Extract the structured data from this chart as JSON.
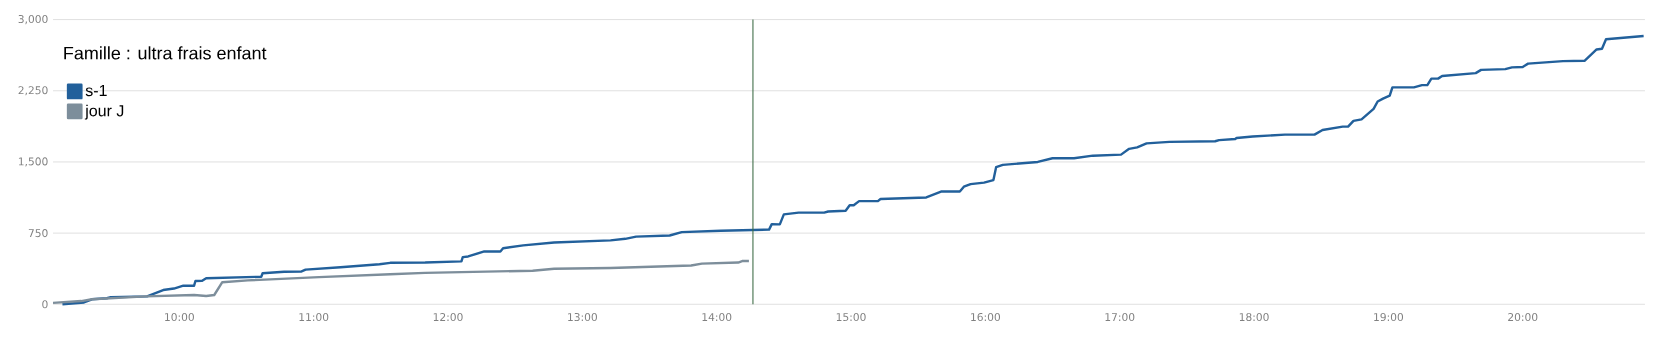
{
  "chart_data": {
    "type": "line",
    "title": "Famille : ultra frais enfant",
    "xlim": [
      9.06,
      20.91
    ],
    "ylim": [
      0,
      3000
    ],
    "xticks": [
      {
        "value": 10,
        "label": "10:00"
      },
      {
        "value": 11,
        "label": "11:00"
      },
      {
        "value": 12,
        "label": "12:00"
      },
      {
        "value": 13,
        "label": "13:00"
      },
      {
        "value": 14,
        "label": "14:00"
      },
      {
        "value": 15,
        "label": "15:00"
      },
      {
        "value": 16,
        "label": "16:00"
      },
      {
        "value": 17,
        "label": "17:00"
      },
      {
        "value": 18,
        "label": "18:00"
      },
      {
        "value": 19,
        "label": "19:00"
      },
      {
        "value": 20,
        "label": "20:00"
      }
    ],
    "yticks": [
      0,
      750,
      {
        "value": 1500,
        "label": "1,500"
      },
      {
        "value": 2250,
        "label": "2,250"
      },
      {
        "value": 3000,
        "label": "3,000"
      }
    ],
    "grid": "y",
    "legend": "top left",
    "ref_lines": [
      {
        "axis": "x",
        "value": 14.27,
        "color": "#3d6b45"
      }
    ],
    "series": [
      {
        "name": "s-1",
        "color": "#22609b",
        "x": [
          9.13,
          9.29,
          9.35,
          9.46,
          9.49,
          9.76,
          9.88,
          9.96,
          10.03,
          10.11,
          10.12,
          10.17,
          10.2,
          10.61,
          10.62,
          10.78,
          10.91,
          10.94,
          11.2,
          11.49,
          11.57,
          11.83,
          12.1,
          12.11,
          12.15,
          12.27,
          12.39,
          12.41,
          12.56,
          12.79,
          13.21,
          13.32,
          13.4,
          13.65,
          13.74,
          14.03,
          14.39,
          14.41,
          14.47,
          14.5,
          14.61,
          14.8,
          14.83,
          14.96,
          14.99,
          15.02,
          15.06,
          15.2,
          15.22,
          15.56,
          15.67,
          15.81,
          15.84,
          15.89,
          15.99,
          16.06,
          16.08,
          16.13,
          16.39,
          16.5,
          16.66,
          16.8,
          17.01,
          17.07,
          17.13,
          17.2,
          17.37,
          17.71,
          17.74,
          17.86,
          17.87,
          17.99,
          18.23,
          18.45,
          18.51,
          18.66,
          18.7,
          18.74,
          18.8,
          18.89,
          18.92,
          18.96,
          19.01,
          19.03,
          19.19,
          19.25,
          19.29,
          19.32,
          19.37,
          19.4,
          19.65,
          19.69,
          19.87,
          19.92,
          20.0,
          20.04,
          20.3,
          20.46,
          20.55,
          20.59,
          20.62,
          20.9
        ],
        "values": [
          0,
          19,
          53,
          64,
          75,
          83,
          150,
          166,
          196,
          196,
          245,
          248,
          275,
          290,
          327,
          343,
          346,
          365,
          391,
          422,
          437,
          440,
          452,
          497,
          504,
          557,
          557,
          591,
          621,
          651,
          674,
          690,
          713,
          725,
          760,
          775,
          787,
          845,
          842,
          947,
          966,
          966,
          978,
          986,
          1044,
          1044,
          1087,
          1087,
          1110,
          1126,
          1188,
          1188,
          1239,
          1266,
          1282,
          1309,
          1445,
          1469,
          1500,
          1539,
          1539,
          1566,
          1577,
          1638,
          1653,
          1696,
          1711,
          1718,
          1730,
          1742,
          1753,
          1768,
          1788,
          1788,
          1837,
          1872,
          1872,
          1933,
          1949,
          2060,
          2137,
          2167,
          2198,
          2286,
          2286,
          2309,
          2309,
          2378,
          2378,
          2405,
          2436,
          2470,
          2478,
          2497,
          2501,
          2536,
          2562,
          2566,
          2685,
          2693,
          2793,
          2827
        ]
      },
      {
        "name": "jour J",
        "color": "#7d8e9b",
        "x": [
          9.06,
          9.27,
          9.35,
          9.75,
          10.11,
          10.2,
          10.26,
          10.32,
          10.51,
          11.04,
          11.57,
          11.83,
          12.1,
          12.63,
          12.79,
          13.21,
          13.81,
          13.89,
          14.16,
          14.19,
          14.24
        ],
        "values": [
          15,
          34,
          53,
          83,
          98,
          87,
          98,
          233,
          252,
          286,
          316,
          331,
          339,
          354,
          374,
          382,
          409,
          429,
          440,
          456,
          456
        ]
      }
    ]
  }
}
